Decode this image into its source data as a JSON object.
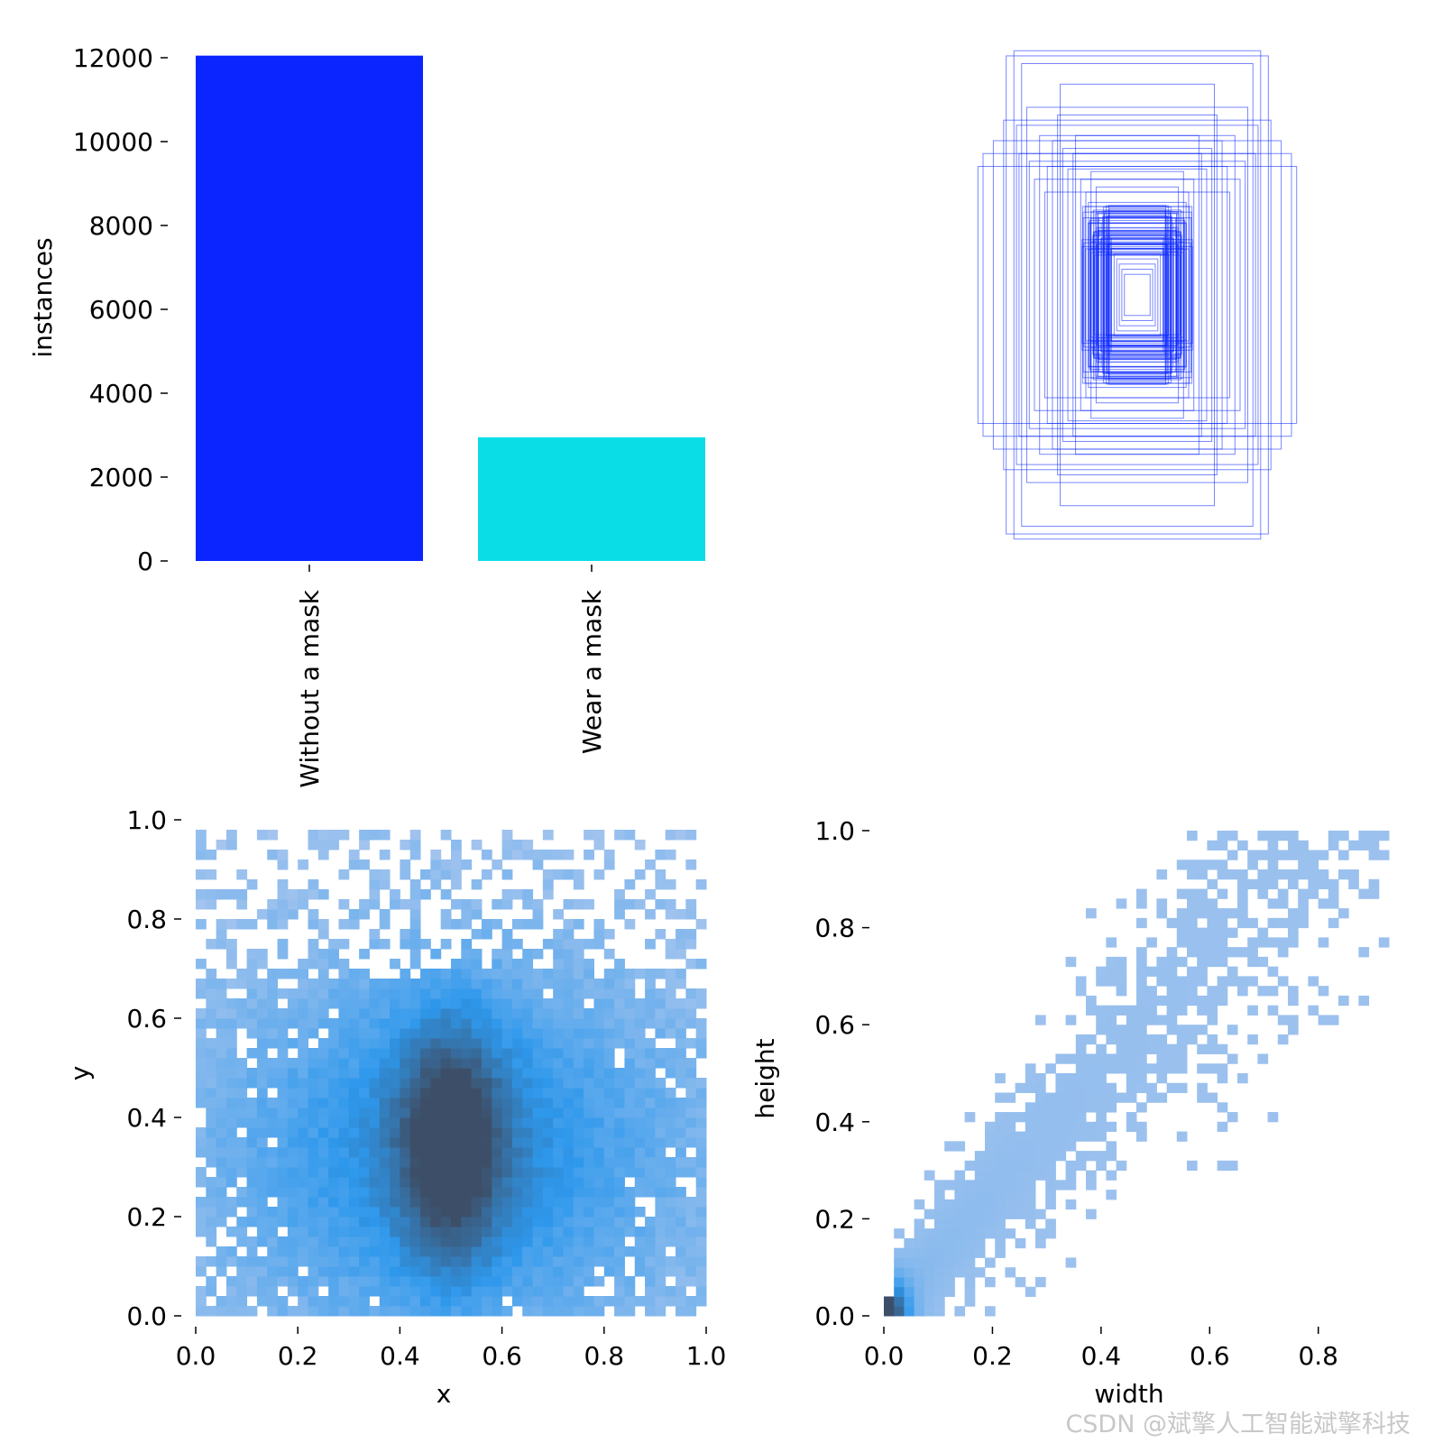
{
  "watermark": "CSDN @斌擎人工智能斌擎科技",
  "colors": {
    "without_mask": "#0a25ff",
    "wear_mask": "#0bdde6",
    "box_outline": "#0a25ff",
    "hist_light": "#a9c6ee",
    "hist_mid": "#2e98ec",
    "hist_dark": "#3d4f68"
  },
  "chart_data": [
    {
      "type": "bar",
      "categories": [
        "Without a mask",
        "Wear a mask"
      ],
      "values": [
        12050,
        2950
      ],
      "ylabel": "instances",
      "xlabel": "",
      "ylim": [
        0,
        12000
      ],
      "yticks": [
        "0",
        "2000",
        "4000",
        "6000",
        "8000",
        "10000",
        "12000"
      ],
      "grid": false
    },
    {
      "type": "boxes",
      "description_only": false,
      "note": "",
      "boxes_wh": [
        [
          0.48,
          0.95
        ],
        [
          0.51,
          0.93
        ],
        [
          0.45,
          0.9
        ],
        [
          0.62,
          0.5
        ],
        [
          0.6,
          0.55
        ],
        [
          0.46,
          0.55
        ],
        [
          0.3,
          0.82
        ],
        [
          0.43,
          0.73
        ],
        [
          0.38,
          0.62
        ],
        [
          0.33,
          0.6
        ],
        [
          0.29,
          0.57
        ],
        [
          0.25,
          0.55
        ],
        [
          0.27,
          0.49
        ],
        [
          0.22,
          0.45
        ],
        [
          0.2,
          0.4
        ],
        [
          0.19,
          0.36
        ],
        [
          0.17,
          0.33
        ],
        [
          0.15,
          0.3
        ],
        [
          0.14,
          0.28
        ],
        [
          0.13,
          0.25
        ],
        [
          0.12,
          0.22
        ],
        [
          0.11,
          0.2
        ],
        [
          0.1,
          0.18
        ],
        [
          0.09,
          0.16
        ],
        [
          0.08,
          0.14
        ],
        [
          0.07,
          0.12
        ],
        [
          0.06,
          0.1
        ],
        [
          0.05,
          0.08
        ],
        [
          0.4,
          0.45
        ],
        [
          0.35,
          0.5
        ],
        [
          0.52,
          0.68
        ],
        [
          0.56,
          0.6
        ],
        [
          0.24,
          0.62
        ],
        [
          0.18,
          0.48
        ],
        [
          0.16,
          0.42
        ],
        [
          0.36,
          0.4
        ],
        [
          0.42,
          0.52
        ],
        [
          0.31,
          0.7
        ],
        [
          0.47,
          0.66
        ],
        [
          0.21,
          0.3
        ]
      ]
    },
    {
      "type": "heatmap",
      "xlabel": "x",
      "ylabel": "y",
      "xlim": [
        0,
        1
      ],
      "ylim": [
        0,
        1
      ],
      "xticks": [
        "0.0",
        "0.2",
        "0.4",
        "0.6",
        "0.8",
        "1.0"
      ],
      "yticks": [
        "0.0",
        "0.2",
        "0.4",
        "0.6",
        "0.8",
        "1.0"
      ],
      "bins": 50,
      "peak_center": [
        0.5,
        0.35
      ]
    },
    {
      "type": "heatmap",
      "xlabel": "width",
      "ylabel": "height",
      "xlim": [
        0,
        0.93
      ],
      "ylim": [
        0,
        1
      ],
      "xticks": [
        "0.0",
        "0.2",
        "0.4",
        "0.6",
        "0.8"
      ],
      "yticks": [
        "0.0",
        "0.2",
        "0.4",
        "0.6",
        "0.8",
        "1.0"
      ],
      "bins": 50,
      "peak_center": [
        0.01,
        0.02
      ]
    }
  ]
}
